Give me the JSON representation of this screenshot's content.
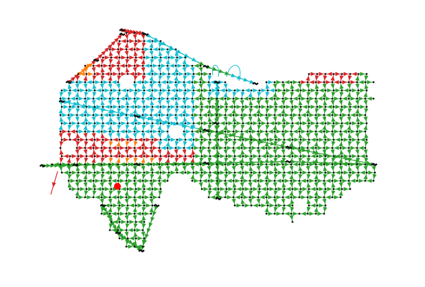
{
  "map": {
    "background": "#ffffff",
    "node_color": "#111111",
    "highlight_node_color": "#ff0000",
    "regions": [
      {
        "id": "red",
        "color": "#d62728"
      },
      {
        "id": "orange",
        "color": "#ff7f0e"
      },
      {
        "id": "cyan",
        "color": "#17becf"
      },
      {
        "id": "green",
        "color": "#2ca02c"
      }
    ],
    "legend": [],
    "labels": []
  }
}
